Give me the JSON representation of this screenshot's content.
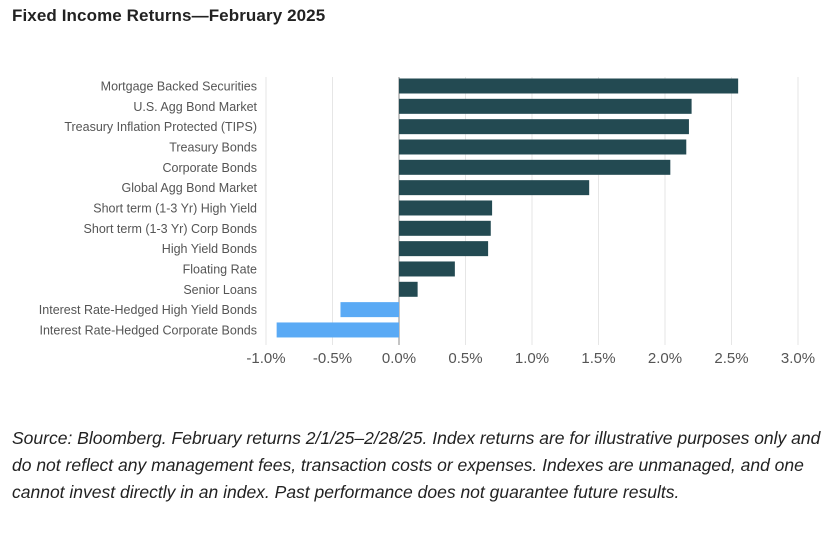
{
  "page": {
    "title": "Fixed Income Returns—February 2025",
    "source_note": "Source: Bloomberg. February returns 2/1/25–2/28/25. Index returns are for illustrative purposes only and do not reflect any management fees, transaction costs or expenses. Indexes are unmanaged, and one cannot invest directly in an index. Past performance does not guarantee future results."
  },
  "chart_data": {
    "type": "bar",
    "orientation": "horizontal",
    "title": "Fixed Income Returns—February 2025",
    "xlabel": "",
    "ylabel": "",
    "categories": [
      "Mortgage Backed Securities",
      "U.S. Agg Bond Market",
      "Treasury Inflation Protected (TIPS)",
      "Treasury Bonds",
      "Corporate Bonds",
      "Global Agg Bond Market",
      "Short term (1-3 Yr) High Yield",
      "Short term (1-3 Yr) Corp Bonds",
      "High Yield Bonds",
      "Floating Rate",
      "Senior Loans",
      "Interest Rate-Hedged High Yield Bonds",
      "Interest Rate-Hedged Corporate Bonds"
    ],
    "values": [
      2.55,
      2.2,
      2.18,
      2.16,
      2.04,
      1.43,
      0.7,
      0.69,
      0.67,
      0.42,
      0.14,
      -0.44,
      -0.92
    ],
    "xlim": [
      -1.0,
      3.0
    ],
    "xticks": [
      -1.0,
      -0.5,
      0.0,
      0.5,
      1.0,
      1.5,
      2.0,
      2.5,
      3.0
    ],
    "xtick_labels": [
      "-1.0%",
      "-0.5%",
      "0.0%",
      "0.5%",
      "1.0%",
      "1.5%",
      "2.0%",
      "2.5%",
      "3.0%"
    ],
    "grid": "vertical",
    "legend": "none",
    "colors": {
      "positive": "#234a52",
      "negative": "#5aaaf5",
      "grid": "#e6e6e6",
      "zero_line": "#888888",
      "text": "#555555"
    }
  }
}
